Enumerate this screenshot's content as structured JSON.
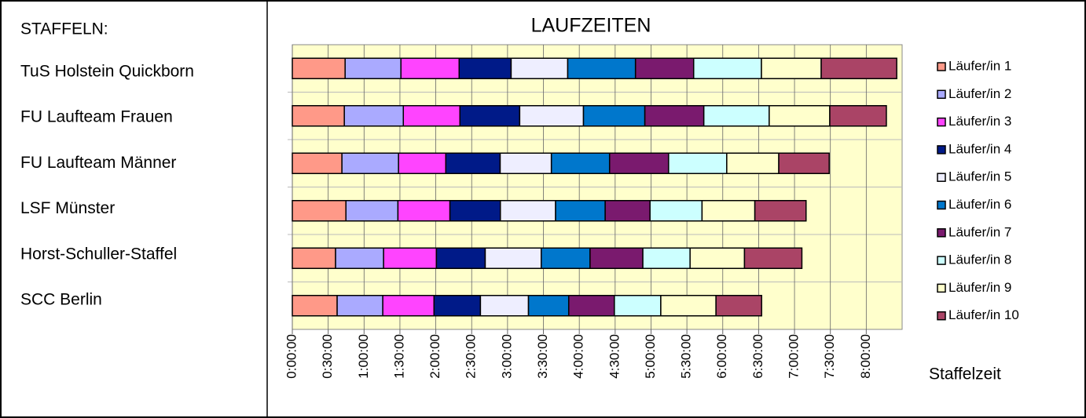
{
  "chart_data": {
    "type": "stacked_barh",
    "title": "LAUFZEITEN",
    "categories_title": "STAFFELN:",
    "xlabel": "Staffelzeit",
    "categories": [
      "TuS Holstein Quickborn",
      "FU Laufteam Frauen",
      "FU Laufteam Männer",
      "LSF Münster",
      "Horst-Schuller-Staffel",
      "SCC Berlin"
    ],
    "series": [
      {
        "name": "Läufer/in 1",
        "color": "#ff9988",
        "values": [
          2650,
          2610,
          2490,
          2690,
          2170,
          2250
        ]
      },
      {
        "name": "Läufer/in 2",
        "color": "#aaaaff",
        "values": [
          2800,
          2960,
          2840,
          2610,
          2410,
          2290
        ]
      },
      {
        "name": "Läufer/in 3",
        "color": "#ff44ff",
        "values": [
          2920,
          2840,
          2370,
          2610,
          2650,
          2570
        ]
      },
      {
        "name": "Läufer/in 4",
        "color": "#001a88",
        "values": [
          2610,
          3000,
          2730,
          2530,
          2450,
          2330
        ]
      },
      {
        "name": "Läufer/in 5",
        "color": "#eeeeff",
        "values": [
          2840,
          3200,
          2570,
          2770,
          2810,
          2410
        ]
      },
      {
        "name": "Läufer/in 6",
        "color": "#0077cc",
        "values": [
          3400,
          3080,
          2920,
          2490,
          2450,
          2020
        ]
      },
      {
        "name": "Läufer/in 7",
        "color": "#7a1a6e",
        "values": [
          2920,
          2960,
          2960,
          2250,
          2650,
          2290
        ]
      },
      {
        "name": "Läufer/in 8",
        "color": "#ccffff",
        "values": [
          3400,
          3280,
          2920,
          2610,
          2370,
          2330
        ]
      },
      {
        "name": "Läufer/in 9",
        "color": "#ffffcc",
        "values": [
          3000,
          3040,
          2610,
          2650,
          2730,
          2770
        ]
      },
      {
        "name": "Läufer/in 10",
        "color": "#aa4466",
        "values": [
          3790,
          2840,
          2530,
          2570,
          2880,
          2290
        ]
      }
    ],
    "xlim": [
      0,
      30600
    ],
    "xticks": [
      {
        "value": 0,
        "label": "0:00:00"
      },
      {
        "value": 1800,
        "label": "0:30:00"
      },
      {
        "value": 3600,
        "label": "1:00:00"
      },
      {
        "value": 5400,
        "label": "1:30:00"
      },
      {
        "value": 7200,
        "label": "2:00:00"
      },
      {
        "value": 9000,
        "label": "2:30:00"
      },
      {
        "value": 10800,
        "label": "3:00:00"
      },
      {
        "value": 12600,
        "label": "3:30:00"
      },
      {
        "value": 14400,
        "label": "4:00:00"
      },
      {
        "value": 16200,
        "label": "4:30:00"
      },
      {
        "value": 18000,
        "label": "5:00:00"
      },
      {
        "value": 19800,
        "label": "5:30:00"
      },
      {
        "value": 21600,
        "label": "6:00:00"
      },
      {
        "value": 23400,
        "label": "6:30:00"
      },
      {
        "value": 25200,
        "label": "7:00:00"
      },
      {
        "value": 27000,
        "label": "7:30:00"
      },
      {
        "value": 28800,
        "label": "8:00:00"
      }
    ],
    "grid": true,
    "background": "#ffffcc",
    "legend": "right"
  }
}
